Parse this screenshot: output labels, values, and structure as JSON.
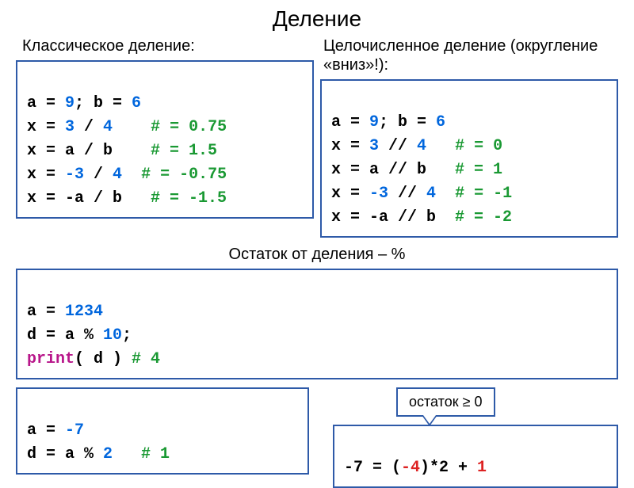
{
  "title": "Деление",
  "classic": {
    "label": "Классическое деление:",
    "l1": {
      "a": "a = ",
      "b": "9",
      "c": "; b = ",
      "d": "6"
    },
    "l2": {
      "a": "x = ",
      "b": "3",
      "c": " / ",
      "d": "4",
      "e": "    # = 0.75"
    },
    "l3": {
      "a": "x = a / b    ",
      "b": "# = 1.5"
    },
    "l4": {
      "a": "x = ",
      "b": "-3",
      "c": " / ",
      "d": "4",
      "e": "  # = -0.75"
    },
    "l5": {
      "a": "x = -a / b   ",
      "b": "# = -1.5"
    }
  },
  "intdiv": {
    "label": "Целочисленное деление (округление «вниз»!):",
    "l1": {
      "a": "a = ",
      "b": "9",
      "c": "; b = ",
      "d": "6"
    },
    "l2": {
      "a": "x = ",
      "b": "3",
      "c": " // ",
      "d": "4",
      "e": "   # = 0"
    },
    "l3": {
      "a": "x = a // b   ",
      "b": "# = 1"
    },
    "l4": {
      "a": "x = ",
      "b": "-3",
      "c": " // ",
      "d": "4",
      "e": "  # = -1"
    },
    "l5": {
      "a": "x = -a // b  ",
      "b": "# = -2"
    }
  },
  "modulo": {
    "label": "Остаток от деления – %",
    "l1": {
      "a": "a = ",
      "b": "1234"
    },
    "l2": {
      "a": "d = a % ",
      "b": "10",
      "c": ";"
    },
    "l3": {
      "a": "print",
      "b": "( d ) ",
      "c": "# 4"
    }
  },
  "neg": {
    "l1": {
      "a": "a = ",
      "b": "-7"
    },
    "l2": {
      "a": "d = a % ",
      "b": "2",
      "c": "   # 1"
    }
  },
  "callout": "остаток ≥ 0",
  "formula": {
    "a": "-7 = (",
    "b": "-4",
    "c": ")*2 + ",
    "d": "1"
  },
  "colors": {
    "border": "#2e5aa8",
    "black": "#000000",
    "blue": "#0066dd",
    "green": "#1a9933",
    "red": "#dd2222",
    "magenta": "#b8168a",
    "bg": "#ffffff"
  }
}
